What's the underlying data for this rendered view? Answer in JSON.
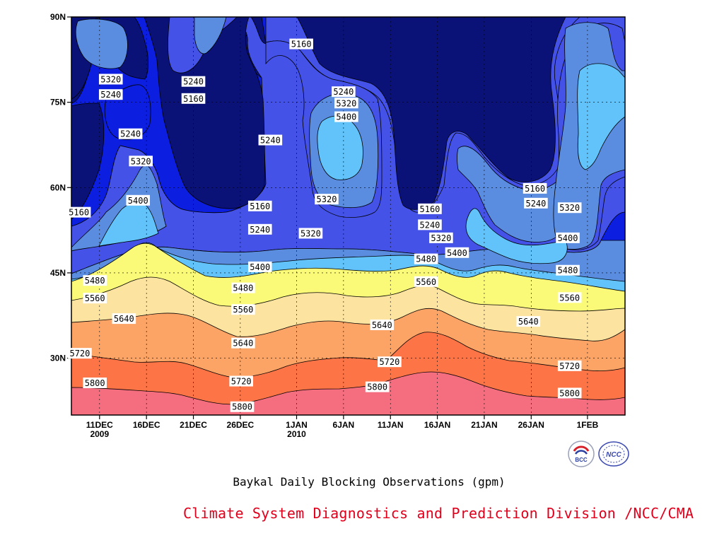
{
  "chart_data": {
    "type": "contour",
    "title": "Baykal Daily Blocking Observations (gpm)",
    "credit": "Climate System Diagnostics and Prediction Division /NCC/CMA",
    "y_ticks": [
      {
        "value": 30,
        "label": "30N"
      },
      {
        "value": 45,
        "label": "45N"
      },
      {
        "value": 60,
        "label": "60N"
      },
      {
        "value": 75,
        "label": "75N"
      },
      {
        "value": 90,
        "label": "90N"
      }
    ],
    "ylim": [
      20,
      90
    ],
    "x_ticks": [
      {
        "value": 10,
        "label": "11DEC",
        "sublabel": "2009"
      },
      {
        "value": 15,
        "label": "16DEC"
      },
      {
        "value": 20,
        "label": "21DEC"
      },
      {
        "value": 25,
        "label": "26DEC"
      },
      {
        "value": 31,
        "label": "1JAN",
        "sublabel": "2010"
      },
      {
        "value": 36,
        "label": "6JAN"
      },
      {
        "value": 41,
        "label": "11JAN"
      },
      {
        "value": 46,
        "label": "16JAN"
      },
      {
        "value": 51,
        "label": "21JAN"
      },
      {
        "value": 56,
        "label": "26JAN"
      },
      {
        "value": 62,
        "label": "1FEB"
      }
    ],
    "xlim": [
      7,
      66
    ],
    "grid": true,
    "levels": [
      5160,
      5240,
      5320,
      5400,
      5480,
      5560,
      5640,
      5720,
      5800
    ],
    "bands": [
      {
        "range": "<5160",
        "color": "#0a1278"
      },
      {
        "range": "5160-5240",
        "color": "#0c1fe0"
      },
      {
        "range": "5240-5320",
        "color": "#4452e8"
      },
      {
        "range": "5320-5400",
        "color": "#5a8ce0"
      },
      {
        "range": "5400-5480",
        "color": "#62c2fa"
      },
      {
        "range": "5480-5560",
        "color": "#fafa78"
      },
      {
        "range": "5560-5640",
        "color": "#fde3a0"
      },
      {
        "range": "5640-5720",
        "color": "#fca466"
      },
      {
        "range": "5720-5800",
        "color": "#fd7446"
      },
      {
        "range": ">5800",
        "color": "#f56e80"
      }
    ],
    "contour_labels": [
      {
        "text": "5160",
        "x": 31.5,
        "y": 85.2
      },
      {
        "text": "5320",
        "x": 11.2,
        "y": 79.0
      },
      {
        "text": "5240",
        "x": 11.2,
        "y": 76.3
      },
      {
        "text": "5240",
        "x": 20.0,
        "y": 78.6
      },
      {
        "text": "5160",
        "x": 20.0,
        "y": 75.6
      },
      {
        "text": "5240",
        "x": 36.0,
        "y": 76.8
      },
      {
        "text": "5320",
        "x": 36.3,
        "y": 74.8
      },
      {
        "text": "5400",
        "x": 36.3,
        "y": 72.4
      },
      {
        "text": "5240",
        "x": 13.3,
        "y": 69.4
      },
      {
        "text": "5240",
        "x": 28.2,
        "y": 68.3
      },
      {
        "text": "5320",
        "x": 14.4,
        "y": 64.6
      },
      {
        "text": "5160",
        "x": 7.8,
        "y": 55.6
      },
      {
        "text": "5400",
        "x": 14.1,
        "y": 57.7
      },
      {
        "text": "5160",
        "x": 27.1,
        "y": 56.7
      },
      {
        "text": "5320",
        "x": 34.2,
        "y": 57.9
      },
      {
        "text": "5240",
        "x": 27.1,
        "y": 52.6
      },
      {
        "text": "5320",
        "x": 32.5,
        "y": 51.9
      },
      {
        "text": "5160",
        "x": 45.2,
        "y": 56.2
      },
      {
        "text": "5240",
        "x": 45.2,
        "y": 53.4
      },
      {
        "text": "5160",
        "x": 56.4,
        "y": 59.8
      },
      {
        "text": "5240",
        "x": 56.5,
        "y": 57.2
      },
      {
        "text": "5320",
        "x": 60.1,
        "y": 56.4
      },
      {
        "text": "5320",
        "x": 46.4,
        "y": 51.1
      },
      {
        "text": "5400",
        "x": 48.1,
        "y": 48.5
      },
      {
        "text": "5400",
        "x": 59.9,
        "y": 51.1
      },
      {
        "text": "5480",
        "x": 9.5,
        "y": 43.6
      },
      {
        "text": "5400",
        "x": 27.1,
        "y": 46.0
      },
      {
        "text": "5480",
        "x": 44.8,
        "y": 47.4
      },
      {
        "text": "5480",
        "x": 59.9,
        "y": 45.4
      },
      {
        "text": "5560",
        "x": 9.5,
        "y": 40.5
      },
      {
        "text": "5480",
        "x": 25.3,
        "y": 42.3
      },
      {
        "text": "5560",
        "x": 44.8,
        "y": 43.4
      },
      {
        "text": "5560",
        "x": 60.1,
        "y": 40.6
      },
      {
        "text": "5640",
        "x": 12.6,
        "y": 36.9
      },
      {
        "text": "5560",
        "x": 25.3,
        "y": 38.5
      },
      {
        "text": "5640",
        "x": 40.1,
        "y": 35.8
      },
      {
        "text": "5640",
        "x": 55.7,
        "y": 36.4
      },
      {
        "text": "5640",
        "x": 25.3,
        "y": 32.6
      },
      {
        "text": "5720",
        "x": 7.9,
        "y": 30.8
      },
      {
        "text": "5720",
        "x": 40.9,
        "y": 29.3
      },
      {
        "text": "5720",
        "x": 25.1,
        "y": 25.9
      },
      {
        "text": "5720",
        "x": 60.1,
        "y": 28.6
      },
      {
        "text": "5800",
        "x": 9.5,
        "y": 25.6
      },
      {
        "text": "5800",
        "x": 39.6,
        "y": 24.9
      },
      {
        "text": "5800",
        "x": 60.1,
        "y": 23.8
      },
      {
        "text": "5800",
        "x": 25.2,
        "y": 21.4
      }
    ]
  },
  "logos": {
    "left_name": "bcc-logo",
    "left_text": "BCC",
    "right_name": "ncc-logo",
    "right_text": "NCC"
  }
}
